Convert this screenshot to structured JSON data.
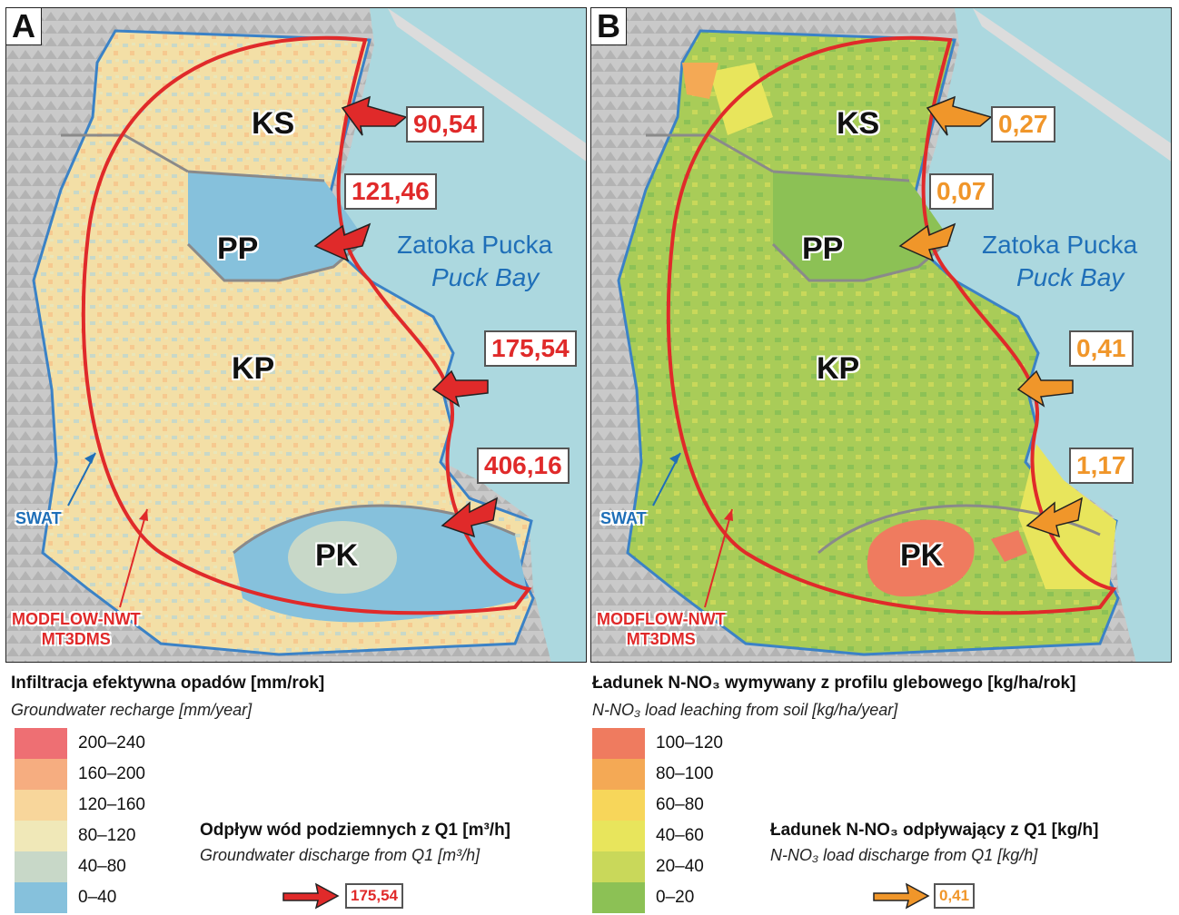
{
  "colors": {
    "sea": "#acd8df",
    "model_boundary": "#e02a2a",
    "catchment_boundary": "#3b82c6",
    "zone_line": "#8a8a8a",
    "recharge_scale": [
      "#ee6f73",
      "#f6ad80",
      "#f8d69b",
      "#f0e8b8",
      "#c8d8c8",
      "#86c1dc"
    ],
    "load_scale": [
      "#ef7b5f",
      "#f4a955",
      "#f7d65a",
      "#e8e55c",
      "#c9d85a",
      "#8cc155"
    ]
  },
  "panel_a": {
    "letter": "A",
    "regions": [
      "KS",
      "PP",
      "KP",
      "PK"
    ],
    "bay_pl": "Zatoka Pucka",
    "bay_en": "Puck Bay",
    "values": [
      "90,54",
      "121,46",
      "175,54",
      "406,16"
    ],
    "swat_label": "SWAT",
    "modflow_line1": "MODFLOW-NWT",
    "modflow_line2": "MT3DMS"
  },
  "panel_b": {
    "letter": "B",
    "regions": [
      "KS",
      "PP",
      "KP",
      "PK"
    ],
    "bay_pl": "Zatoka Pucka",
    "bay_en": "Puck Bay",
    "values": [
      "0,27",
      "0,07",
      "0,41",
      "1,17"
    ],
    "swat_label": "SWAT",
    "modflow_line1": "MODFLOW-NWT",
    "modflow_line2": "MT3DMS"
  },
  "legend_a": {
    "title": "Infiltracja efektywna opadów [mm/rok]",
    "subtitle": "Groundwater recharge [mm/year]",
    "classes": [
      "200–240",
      "160–200",
      "120–160",
      "80–120",
      "40–80",
      "0–40"
    ],
    "discharge_title": "Odpływ wód podziemnych z Q1 [m³/h]",
    "discharge_sub": "Groundwater discharge from Q1 [m³/h]",
    "sample_value": "175,54"
  },
  "legend_b": {
    "title": "Ładunek N-NO₃ wymywany z profilu glebowego [kg/ha/rok]",
    "subtitle": "N-NO₃ load leaching from soil [kg/ha/year]",
    "classes": [
      "100–120",
      "80–100",
      "60–80",
      "40–60",
      "20–40",
      "0–20"
    ],
    "discharge_title": "Ładunek N-NO₃ odpływający z Q1 [kg/h]",
    "discharge_sub": "N-NO₃ load discharge from Q1 [kg/h]",
    "sample_value": "0,41"
  }
}
